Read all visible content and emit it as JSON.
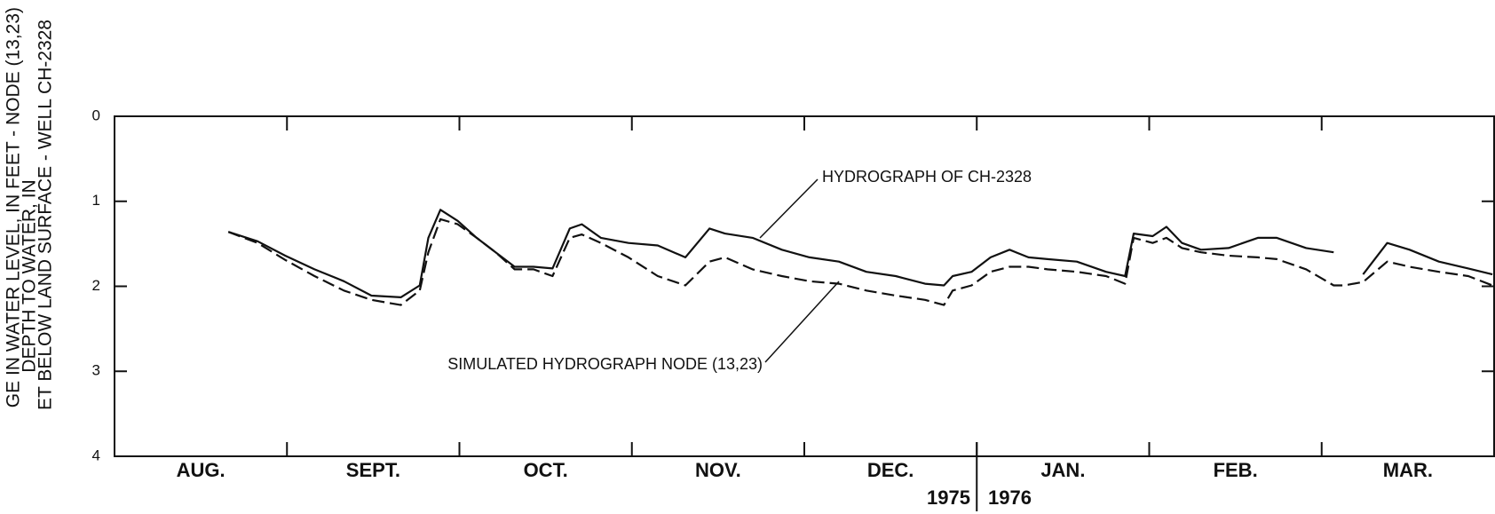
{
  "chart_data": {
    "type": "line",
    "y_label_lines": [
      "GE IN WATER LEVEL, IN FEET - NODE (13,23)",
      "DEPTH TO WATER, IN",
      "ET BELOW LAND SURFACE - WELL CH-2328"
    ],
    "categories": [
      "AUG.",
      "SEPT.",
      "OCT.",
      "NOV.",
      "DEC.",
      "JAN.",
      "FEB.",
      "MAR."
    ],
    "year_labels": [
      "1975",
      "1976"
    ],
    "annotations": [
      "HYDROGRAPH OF CH-2328",
      "SIMULATED HYDROGRAPH NODE (13,23)"
    ],
    "xlim": [
      0,
      8
    ],
    "xticks": [
      0,
      1,
      2,
      3,
      4,
      5,
      6,
      7,
      8
    ],
    "ylim": [
      0,
      4
    ],
    "yticks": [
      0,
      1,
      2,
      3,
      4
    ],
    "y_inverted": true,
    "x": [
      0.66,
      0.83,
      0.99,
      1.16,
      1.33,
      1.49,
      1.66,
      1.77,
      1.82,
      1.89,
      1.99,
      2.1,
      2.21,
      2.32,
      2.43,
      2.54,
      2.64,
      2.71,
      2.82,
      2.98,
      3.15,
      3.31,
      3.45,
      3.54,
      3.7,
      3.87,
      4.03,
      4.2,
      4.36,
      4.53,
      4.7,
      4.81,
      4.86,
      4.97,
      5.08,
      5.19,
      5.3,
      5.41,
      5.58,
      5.75,
      5.86,
      5.91,
      6.02,
      6.1,
      6.19,
      6.3,
      6.46,
      6.63,
      6.74,
      6.91,
      7.07,
      7.13,
      7.24,
      7.38,
      7.51,
      7.68,
      7.85,
      7.99
    ],
    "series": [
      {
        "name": "HYDROGRAPH OF CH-2328",
        "color": "#111111",
        "dashed": false,
        "values": [
          1.36,
          1.47,
          1.64,
          1.8,
          1.94,
          2.11,
          2.13,
          1.99,
          1.43,
          1.1,
          1.23,
          1.43,
          1.6,
          1.77,
          1.77,
          1.79,
          1.32,
          1.27,
          1.43,
          1.49,
          1.52,
          1.66,
          1.32,
          1.38,
          1.43,
          1.57,
          1.66,
          1.71,
          1.83,
          1.88,
          1.97,
          1.99,
          1.88,
          1.83,
          1.66,
          1.57,
          1.66,
          1.68,
          1.71,
          1.83,
          1.88,
          1.38,
          1.41,
          1.3,
          1.49,
          1.57,
          1.55,
          1.43,
          1.43,
          1.55,
          1.6,
          null,
          1.86,
          1.49,
          1.57,
          1.71,
          1.79,
          1.86
        ]
      },
      {
        "name": "SIMULATED HYDROGRAPH NODE (13,23)",
        "color": "#111111",
        "dashed": true,
        "values": [
          1.36,
          1.49,
          1.69,
          1.88,
          2.05,
          2.16,
          2.22,
          2.05,
          1.6,
          1.21,
          1.27,
          1.43,
          1.6,
          1.8,
          1.8,
          1.88,
          1.43,
          1.39,
          1.49,
          1.66,
          1.88,
          1.99,
          1.71,
          1.66,
          1.8,
          1.88,
          1.94,
          1.97,
          2.05,
          2.11,
          2.16,
          2.22,
          2.05,
          1.99,
          1.83,
          1.77,
          1.77,
          1.8,
          1.83,
          1.88,
          1.97,
          1.43,
          1.49,
          1.43,
          1.55,
          1.6,
          1.64,
          1.66,
          1.68,
          1.8,
          1.99,
          1.99,
          1.95,
          1.71,
          1.77,
          1.83,
          1.88,
          1.99
        ]
      }
    ]
  }
}
